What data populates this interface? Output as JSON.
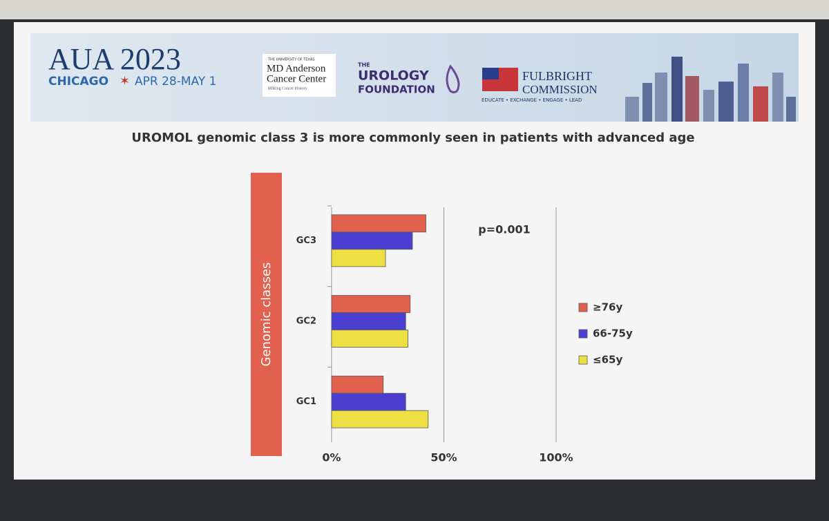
{
  "header": {
    "conference": "AUA 2023",
    "city": "CHICAGO",
    "dates": "APR 28-MAY 1",
    "sponsor1_top": "THE UNIVERSITY OF TEXAS",
    "sponsor1_name1": "MD Anderson",
    "sponsor1_name2": "Cancer Center",
    "sponsor1_tag": "Making Cancer History",
    "sponsor2_top": "THE",
    "sponsor2_name1": "UROLOGY",
    "sponsor2_name2": "FOUNDATION",
    "sponsor3_name1": "FULBRIGHT",
    "sponsor3_name2": "COMMISSION",
    "sponsor3_tag": "EDUCATE • EXCHANGE • ENGAGE • LEAD"
  },
  "chart_data": {
    "type": "hbar",
    "title": "UROMOL genomic class 3 is more commonly seen in patients with advanced age",
    "y_label": "Genomic classes",
    "annotation": "p=0.001",
    "categories": [
      "GC1",
      "GC2",
      "GC3"
    ],
    "series": [
      {
        "name": "≥76y",
        "color": "#e2604e",
        "values": [
          23,
          35,
          42
        ]
      },
      {
        "name": "66-75y",
        "color": "#4b3fd2",
        "values": [
          33,
          33,
          36
        ]
      },
      {
        "name": "≤65y",
        "color": "#eee043",
        "values": [
          43,
          34,
          24
        ]
      }
    ],
    "xlim": [
      0,
      100
    ],
    "xticks": [
      {
        "value": 0,
        "label": "0%"
      },
      {
        "value": 50,
        "label": "50%"
      },
      {
        "value": 100,
        "label": "100%"
      }
    ],
    "grid": true,
    "legend": "right"
  }
}
